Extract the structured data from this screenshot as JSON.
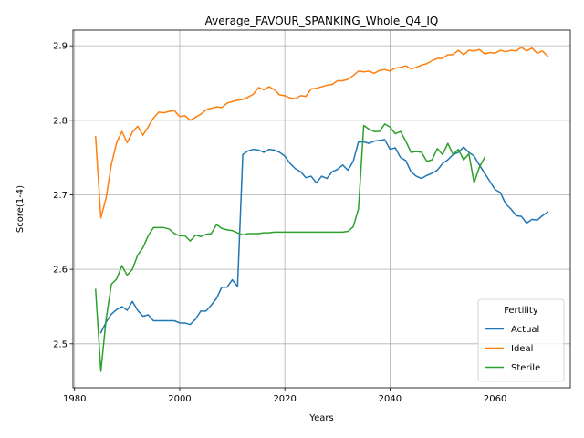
{
  "chart_data": {
    "type": "line",
    "title": "Average_FAVOUR_SPANKING_Whole_Q4_IQ",
    "xlabel": "Years",
    "ylabel": "Score(1-4)",
    "xlim": [
      1979.7,
      2074.3
    ],
    "ylim": [
      2.441,
      2.921
    ],
    "xticks": [
      1980,
      2000,
      2020,
      2040,
      2060
    ],
    "yticks": [
      2.5,
      2.6,
      2.7,
      2.8,
      2.9
    ],
    "grid": true,
    "legend": {
      "title": "Fertility",
      "placement": "lower-right"
    },
    "series": [
      {
        "name": "Actual",
        "color": "#1f77b4",
        "x": [
          1985,
          1986,
          1987,
          1988,
          1989,
          1990,
          1991,
          1992,
          1993,
          1994,
          1995,
          1996,
          1997,
          1998,
          1999,
          2000,
          2001,
          2002,
          2003,
          2004,
          2005,
          2006,
          2007,
          2008,
          2009,
          2010,
          2011,
          2012,
          2013,
          2014,
          2015,
          2016,
          2017,
          2018,
          2019,
          2020,
          2021,
          2022,
          2023,
          2024,
          2025,
          2026,
          2027,
          2028,
          2029,
          2030,
          2031,
          2032,
          2033,
          2034,
          2035,
          2036,
          2037,
          2038,
          2039,
          2040,
          2041,
          2042,
          2043,
          2044,
          2045,
          2046,
          2047,
          2048,
          2049,
          2050,
          2051,
          2052,
          2053,
          2054,
          2055,
          2056,
          2057,
          2058,
          2059,
          2060,
          2061,
          2062,
          2063,
          2064,
          2065,
          2066,
          2067,
          2068,
          2069,
          2070
        ],
        "y": [
          2.515,
          2.529,
          2.54,
          2.546,
          2.55,
          2.545,
          2.557,
          2.545,
          2.537,
          2.539,
          2.531,
          2.531,
          2.531,
          2.531,
          2.531,
          2.528,
          2.528,
          2.526,
          2.533,
          2.544,
          2.544,
          2.552,
          2.561,
          2.576,
          2.576,
          2.586,
          2.577,
          2.754,
          2.759,
          2.761,
          2.76,
          2.757,
          2.761,
          2.76,
          2.757,
          2.752,
          2.742,
          2.735,
          2.731,
          2.723,
          2.725,
          2.716,
          2.725,
          2.722,
          2.731,
          2.734,
          2.74,
          2.733,
          2.745,
          2.771,
          2.771,
          2.769,
          2.772,
          2.773,
          2.774,
          2.761,
          2.763,
          2.75,
          2.746,
          2.731,
          2.725,
          2.722,
          2.726,
          2.729,
          2.733,
          2.742,
          2.747,
          2.754,
          2.757,
          2.764,
          2.757,
          2.752,
          2.74,
          2.729,
          2.718,
          2.707,
          2.703,
          2.688,
          2.681,
          2.672,
          2.671,
          2.662,
          2.667,
          2.666,
          2.672,
          2.677
        ]
      },
      {
        "name": "Ideal",
        "color": "#ff7f0e",
        "x": [
          1984,
          1985,
          1986,
          1987,
          1988,
          1989,
          1990,
          1991,
          1992,
          1993,
          1994,
          1995,
          1996,
          1997,
          1998,
          1999,
          2000,
          2001,
          2002,
          2003,
          2004,
          2005,
          2006,
          2007,
          2008,
          2009,
          2010,
          2011,
          2012,
          2013,
          2014,
          2015,
          2016,
          2017,
          2018,
          2019,
          2020,
          2021,
          2022,
          2023,
          2024,
          2025,
          2026,
          2027,
          2028,
          2029,
          2030,
          2031,
          2032,
          2033,
          2034,
          2035,
          2036,
          2037,
          2038,
          2039,
          2040,
          2041,
          2042,
          2043,
          2044,
          2045,
          2046,
          2047,
          2048,
          2049,
          2050,
          2051,
          2052,
          2053,
          2054,
          2055,
          2056,
          2057,
          2058,
          2059,
          2060,
          2061,
          2062,
          2063,
          2064,
          2065,
          2066,
          2067,
          2068,
          2069,
          2070
        ],
        "y": [
          2.778,
          2.669,
          2.696,
          2.741,
          2.77,
          2.785,
          2.77,
          2.784,
          2.792,
          2.78,
          2.791,
          2.803,
          2.811,
          2.81,
          2.812,
          2.813,
          2.805,
          2.806,
          2.8,
          2.804,
          2.808,
          2.814,
          2.816,
          2.818,
          2.817,
          2.823,
          2.825,
          2.827,
          2.828,
          2.831,
          2.835,
          2.844,
          2.841,
          2.845,
          2.841,
          2.834,
          2.833,
          2.83,
          2.829,
          2.833,
          2.832,
          2.842,
          2.843,
          2.845,
          2.847,
          2.848,
          2.853,
          2.853,
          2.855,
          2.86,
          2.866,
          2.865,
          2.866,
          2.863,
          2.867,
          2.868,
          2.866,
          2.87,
          2.871,
          2.873,
          2.869,
          2.871,
          2.874,
          2.876,
          2.88,
          2.883,
          2.883,
          2.888,
          2.888,
          2.894,
          2.888,
          2.894,
          2.893,
          2.895,
          2.889,
          2.891,
          2.89,
          2.894,
          2.892,
          2.894,
          2.893,
          2.898,
          2.893,
          2.897,
          2.89,
          2.893,
          2.886
        ]
      },
      {
        "name": "Sterile",
        "color": "#2ca02c",
        "x": [
          1984,
          1985,
          1986,
          1987,
          1988,
          1989,
          1990,
          1991,
          1992,
          1993,
          1994,
          1995,
          1996,
          1997,
          1998,
          1999,
          2000,
          2001,
          2002,
          2003,
          2004,
          2005,
          2006,
          2007,
          2008,
          2009,
          2010,
          2011,
          2012,
          2013,
          2014,
          2015,
          2016,
          2017,
          2018,
          2019,
          2020,
          2021,
          2022,
          2023,
          2024,
          2025,
          2026,
          2027,
          2028,
          2029,
          2030,
          2031,
          2032,
          2033,
          2034,
          2035,
          2036,
          2037,
          2038,
          2039,
          2040,
          2041,
          2042,
          2043,
          2044,
          2045,
          2046,
          2047,
          2048,
          2049,
          2050,
          2051,
          2052,
          2053,
          2054,
          2055,
          2056,
          2057,
          2058
        ],
        "y": [
          2.573,
          2.463,
          2.533,
          2.58,
          2.587,
          2.605,
          2.592,
          2.6,
          2.619,
          2.629,
          2.645,
          2.656,
          2.656,
          2.656,
          2.654,
          2.648,
          2.645,
          2.645,
          2.638,
          2.646,
          2.644,
          2.647,
          2.648,
          2.66,
          2.655,
          2.653,
          2.652,
          2.649,
          2.646,
          2.648,
          2.648,
          2.648,
          2.649,
          2.649,
          2.65,
          2.65,
          2.65,
          2.65,
          2.65,
          2.65,
          2.65,
          2.65,
          2.65,
          2.65,
          2.65,
          2.65,
          2.65,
          2.65,
          2.651,
          2.657,
          2.681,
          2.793,
          2.788,
          2.785,
          2.785,
          2.795,
          2.791,
          2.782,
          2.785,
          2.772,
          2.757,
          2.758,
          2.757,
          2.745,
          2.747,
          2.762,
          2.754,
          2.769,
          2.754,
          2.761,
          2.747,
          2.755,
          2.716,
          2.737,
          2.75
        ]
      }
    ]
  }
}
